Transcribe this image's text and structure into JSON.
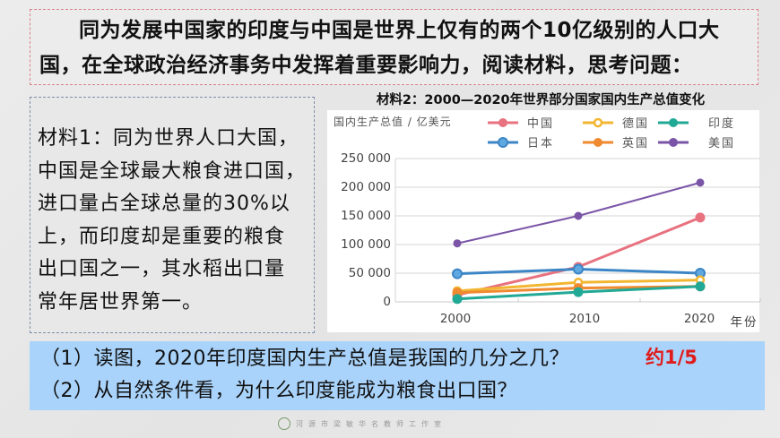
{
  "intro": {
    "line1": "同为发展中国家的印度与中国是世界上仅有的两个10亿级别的人口大",
    "line2": "国，在全球政治经济事务中发挥着重要影响力，阅读材料，思考问题："
  },
  "material1": {
    "lines": [
      "材料1：同为世界人口大国，",
      "中国是全球最大粮食进口国，",
      "进口量占全球总量的30%以",
      "上，而印度却是重要的粮食",
      "出口国之一，其水稻出口量",
      "常年居世界第一。"
    ]
  },
  "chart_data": {
    "type": "line",
    "title": "材料2：2000—2020年世界部分国家国内生产总值变化",
    "ylabel": "国内生产总值 / 亿美元",
    "xlabel": "年份",
    "categories": [
      "2000",
      "2010",
      "2020"
    ],
    "ylim": [
      0,
      250000
    ],
    "yticks": [
      "0",
      "50 000",
      "100 000",
      "150 000",
      "200 000",
      "250 000"
    ],
    "grid": true,
    "legend_position": "top-right",
    "series": [
      {
        "name": "中国",
        "color": "#e8727f",
        "values": [
          12000,
          61000,
          147000
        ]
      },
      {
        "name": "德国",
        "color": "#f2b631",
        "values": [
          19000,
          34000,
          38000
        ]
      },
      {
        "name": "印度",
        "color": "#21a996",
        "values": [
          5000,
          17000,
          27000
        ]
      },
      {
        "name": "日本",
        "color": "#3d86c6",
        "values": [
          49000,
          57000,
          50000
        ]
      },
      {
        "name": "英国",
        "color": "#f08a30",
        "values": [
          16000,
          24000,
          27000
        ]
      },
      {
        "name": "美国",
        "color": "#7a55a7",
        "values": [
          102000,
          150000,
          208000
        ]
      }
    ]
  },
  "questions": {
    "q1": "（1）读图，2020年印度国内生产总值是我国的几分之几？",
    "q2": "（2）从自然条件看，为什么印度能成为粮食出口国？",
    "answer1": "约1/5"
  },
  "footer": {
    "text": "河源市梁敏华名教师工作室"
  }
}
